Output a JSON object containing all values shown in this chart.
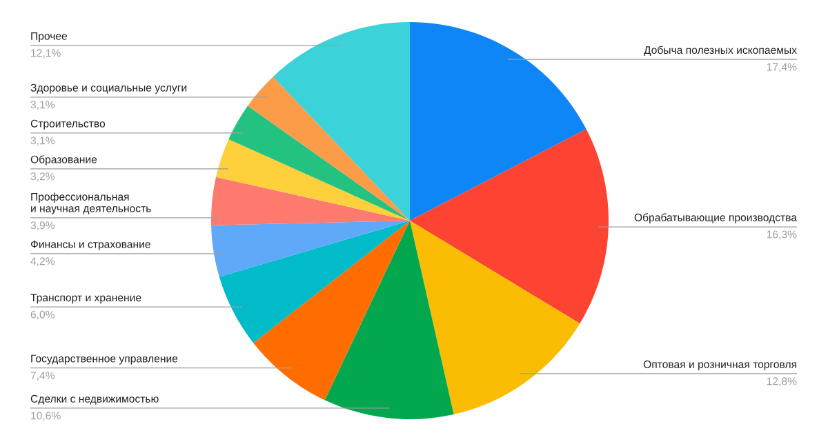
{
  "chart_data": {
    "type": "pie",
    "categories": [
      "Добыча полезных ископаемых",
      "Обрабатывающие производства",
      "Оптовая и розничная торговля",
      "Сделки с недвижимостью",
      "Государственное управление",
      "Транспорт и хранение",
      "Финансы и страхование",
      "Профессиональная\nи научная деятельность",
      "Образование",
      "Строительство",
      "Здоровье и социальные услуги",
      "Прочее"
    ],
    "values": [
      17.4,
      16.3,
      12.8,
      10.6,
      7.4,
      6.0,
      4.2,
      3.9,
      3.2,
      3.1,
      3.1,
      12.1
    ],
    "colors": [
      "#0e86f6",
      "#fd4331",
      "#fbbc04",
      "#03a84e",
      "#ff6d01",
      "#01bbc9",
      "#5fa9f8",
      "#fe7a6f",
      "#fdd03c",
      "#24c281",
      "#fc9b48",
      "#3bd2d9"
    ],
    "value_labels": [
      "17,4%",
      "16,3%",
      "12,8%",
      "10,6%",
      "7,4%",
      "6,0%",
      "4,2%",
      "3,9%",
      "3,2%",
      "3,1%",
      "3,1%",
      "12,1%"
    ]
  }
}
